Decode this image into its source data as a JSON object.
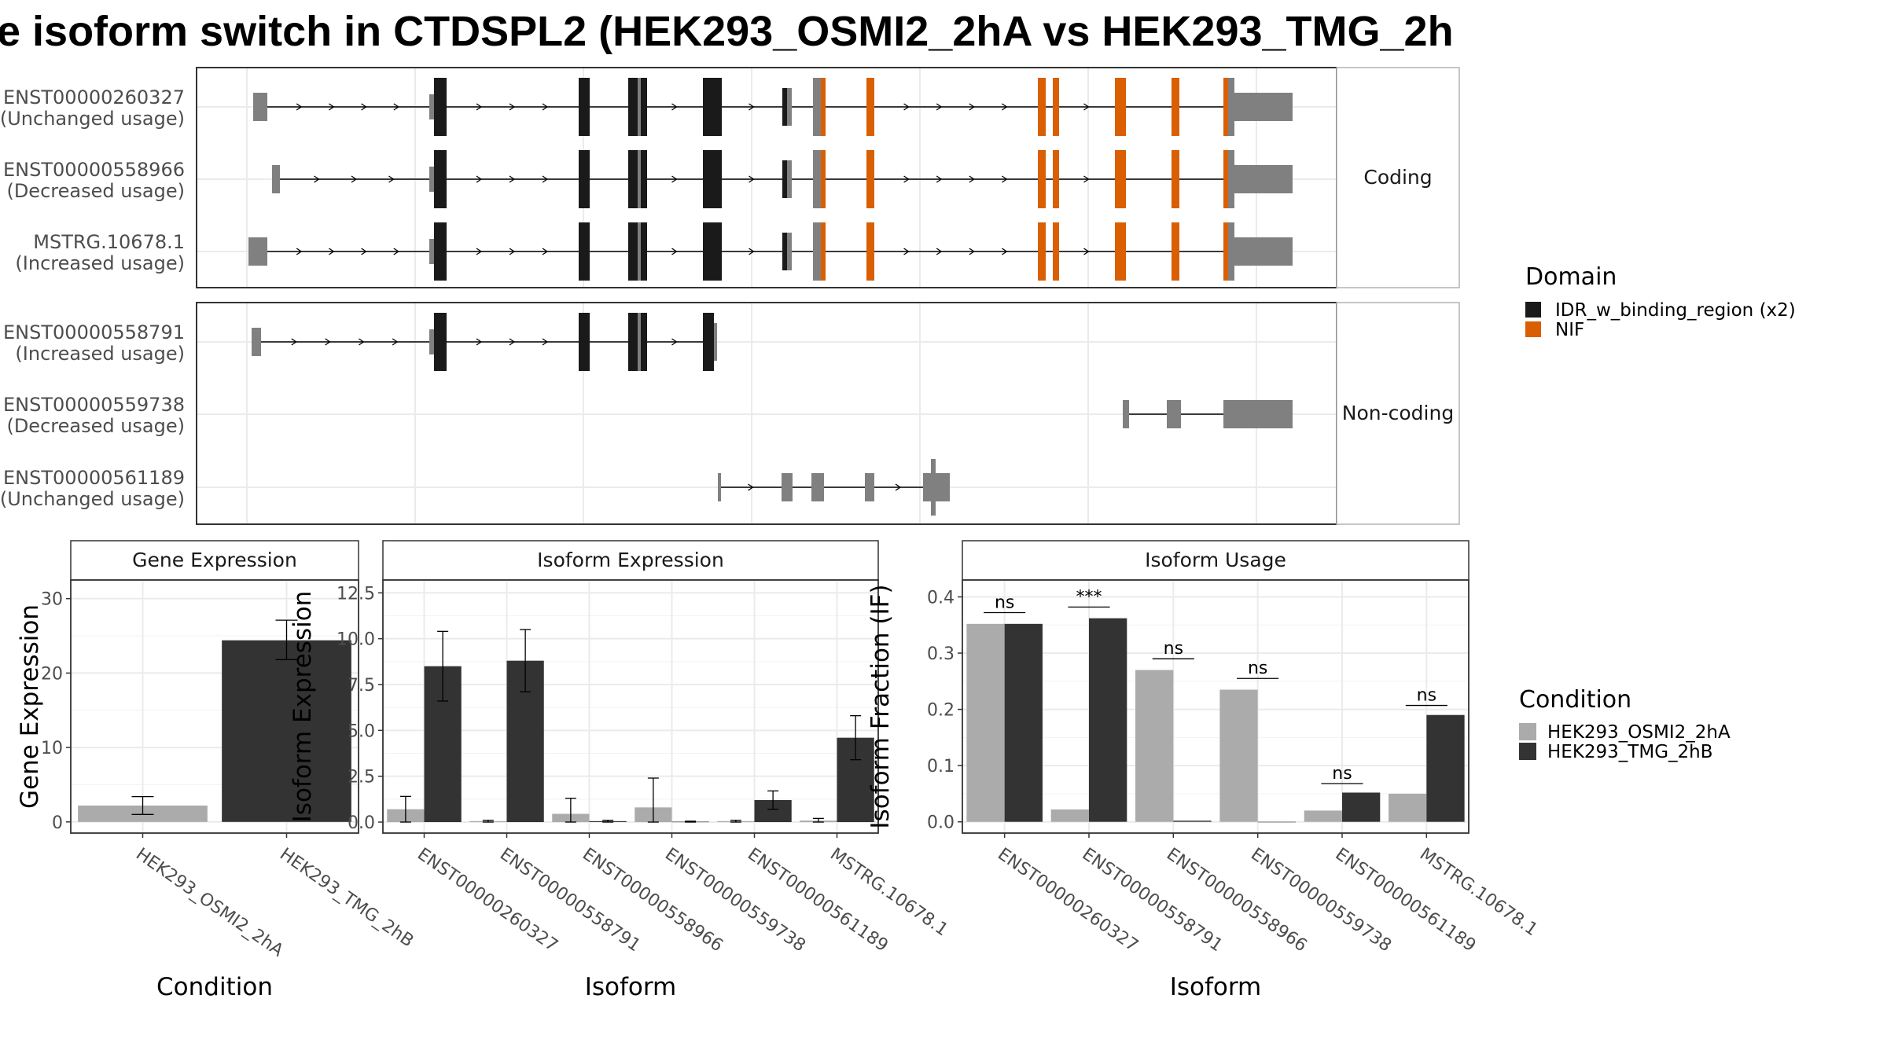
{
  "title": "e isoform switch in CTDSPL2 (HEK293_OSMI2_2hA vs HEK293_TMG_2h",
  "colors": {
    "cond1": "#ababab",
    "cond2": "#333333",
    "idr": "#1a1a1a",
    "nif": "#d95f02",
    "utr": "#808080",
    "grid": "#ebebeb",
    "border": "#333333"
  },
  "structure": {
    "coding_label": "Coding",
    "noncoding_label": "Non-coding",
    "legend_title": "Domain",
    "legend_items": [
      {
        "label": "IDR_w_binding_region (x2)",
        "color": "#1a1a1a"
      },
      {
        "label": "NIF",
        "color": "#d95f02"
      }
    ],
    "coding_transcripts": [
      {
        "id": "ENST00000260327",
        "usage": "(Unchanged usage)"
      },
      {
        "id": "ENST00000558966",
        "usage": "(Decreased usage)"
      },
      {
        "id": "MSTRG.10678.1",
        "usage": "(Increased usage)"
      }
    ],
    "noncoding_transcripts": [
      {
        "id": "ENST00000558791",
        "usage": "(Increased usage)"
      },
      {
        "id": "ENST00000559738",
        "usage": "(Decreased usage)"
      },
      {
        "id": "ENST00000561189",
        "usage": "(Unchanged usage)"
      }
    ]
  },
  "condition_legend": {
    "title": "Condition",
    "items": [
      {
        "label": "HEK293_OSMI2_2hA",
        "color": "#ababab"
      },
      {
        "label": "HEK293_TMG_2hB",
        "color": "#333333"
      }
    ]
  },
  "chart_data": [
    {
      "type": "bar",
      "title": "Gene Expression",
      "xlabel": "Condition",
      "ylabel": "Gene Expression",
      "ylim": [
        -1.5,
        32.5
      ],
      "yticks": [
        0,
        10,
        20,
        30
      ],
      "yticklabels": [
        "0",
        "10",
        "20",
        "30"
      ],
      "grid": true,
      "categories": [
        "HEK293_OSMI2_2hA",
        "HEK293_TMG_2hB"
      ],
      "values": [
        2.2,
        24.4
      ],
      "errors": [
        [
          1.0,
          3.4
        ],
        [
          21.8,
          27.1
        ]
      ]
    },
    {
      "type": "bar",
      "title": "Isoform Expression",
      "xlabel": "Isoform",
      "ylabel": "Isoform Expression",
      "ylim": [
        -0.6,
        13.2
      ],
      "yticks": [
        0,
        2.5,
        5,
        7.5,
        10,
        12.5
      ],
      "yticklabels": [
        "0.0",
        "2.5",
        "5.0",
        "7.5",
        "10.0",
        "12.5"
      ],
      "grid": true,
      "categories": [
        "ENST00000260327",
        "ENST00000558791",
        "ENST00000558966",
        "ENST00000559738",
        "ENST00000561189",
        "MSTRG.10678.1"
      ],
      "series": [
        {
          "name": "HEK293_OSMI2_2hA",
          "values": [
            0.7,
            0.05,
            0.45,
            0.8,
            0.05,
            0.08
          ],
          "errors": [
            [
              0.0,
              1.4
            ],
            [
              0.0,
              0.1
            ],
            [
              0.0,
              1.3
            ],
            [
              0.0,
              2.4
            ],
            [
              0.0,
              0.1
            ],
            [
              0.0,
              0.2
            ]
          ]
        },
        {
          "name": "HEK293_TMG_2hB",
          "values": [
            8.5,
            8.8,
            0.05,
            0.02,
            1.2,
            4.6
          ],
          "errors": [
            [
              6.6,
              10.4
            ],
            [
              7.1,
              10.5
            ],
            [
              0.0,
              0.1
            ],
            [
              0.0,
              0.05
            ],
            [
              0.7,
              1.7
            ],
            [
              3.4,
              5.8
            ]
          ]
        }
      ]
    },
    {
      "type": "bar",
      "title": "Isoform Usage",
      "xlabel": "Isoform",
      "ylabel": "Isoform Fraction (IF)",
      "ylim": [
        -0.02,
        0.43
      ],
      "yticks": [
        0,
        0.1,
        0.2,
        0.3,
        0.4
      ],
      "yticklabels": [
        "0.0",
        "0.1",
        "0.2",
        "0.3",
        "0.4"
      ],
      "grid": true,
      "categories": [
        "ENST00000260327",
        "ENST00000558791",
        "ENST00000558966",
        "ENST00000559738",
        "ENST00000561189",
        "MSTRG.10678.1"
      ],
      "series": [
        {
          "name": "HEK293_OSMI2_2hA",
          "values": [
            0.352,
            0.022,
            0.27,
            0.235,
            0.02,
            0.05
          ]
        },
        {
          "name": "HEK293_TMG_2hB",
          "values": [
            0.352,
            0.362,
            0.002,
            0.0,
            0.052,
            0.19
          ]
        }
      ],
      "significance": [
        {
          "label": "ns",
          "y": 0.372
        },
        {
          "label": "***",
          "y": 0.382
        },
        {
          "label": "ns",
          "y": 0.29
        },
        {
          "label": "ns",
          "y": 0.255
        },
        {
          "label": "ns",
          "y": 0.068
        },
        {
          "label": "ns",
          "y": 0.207
        }
      ]
    }
  ]
}
